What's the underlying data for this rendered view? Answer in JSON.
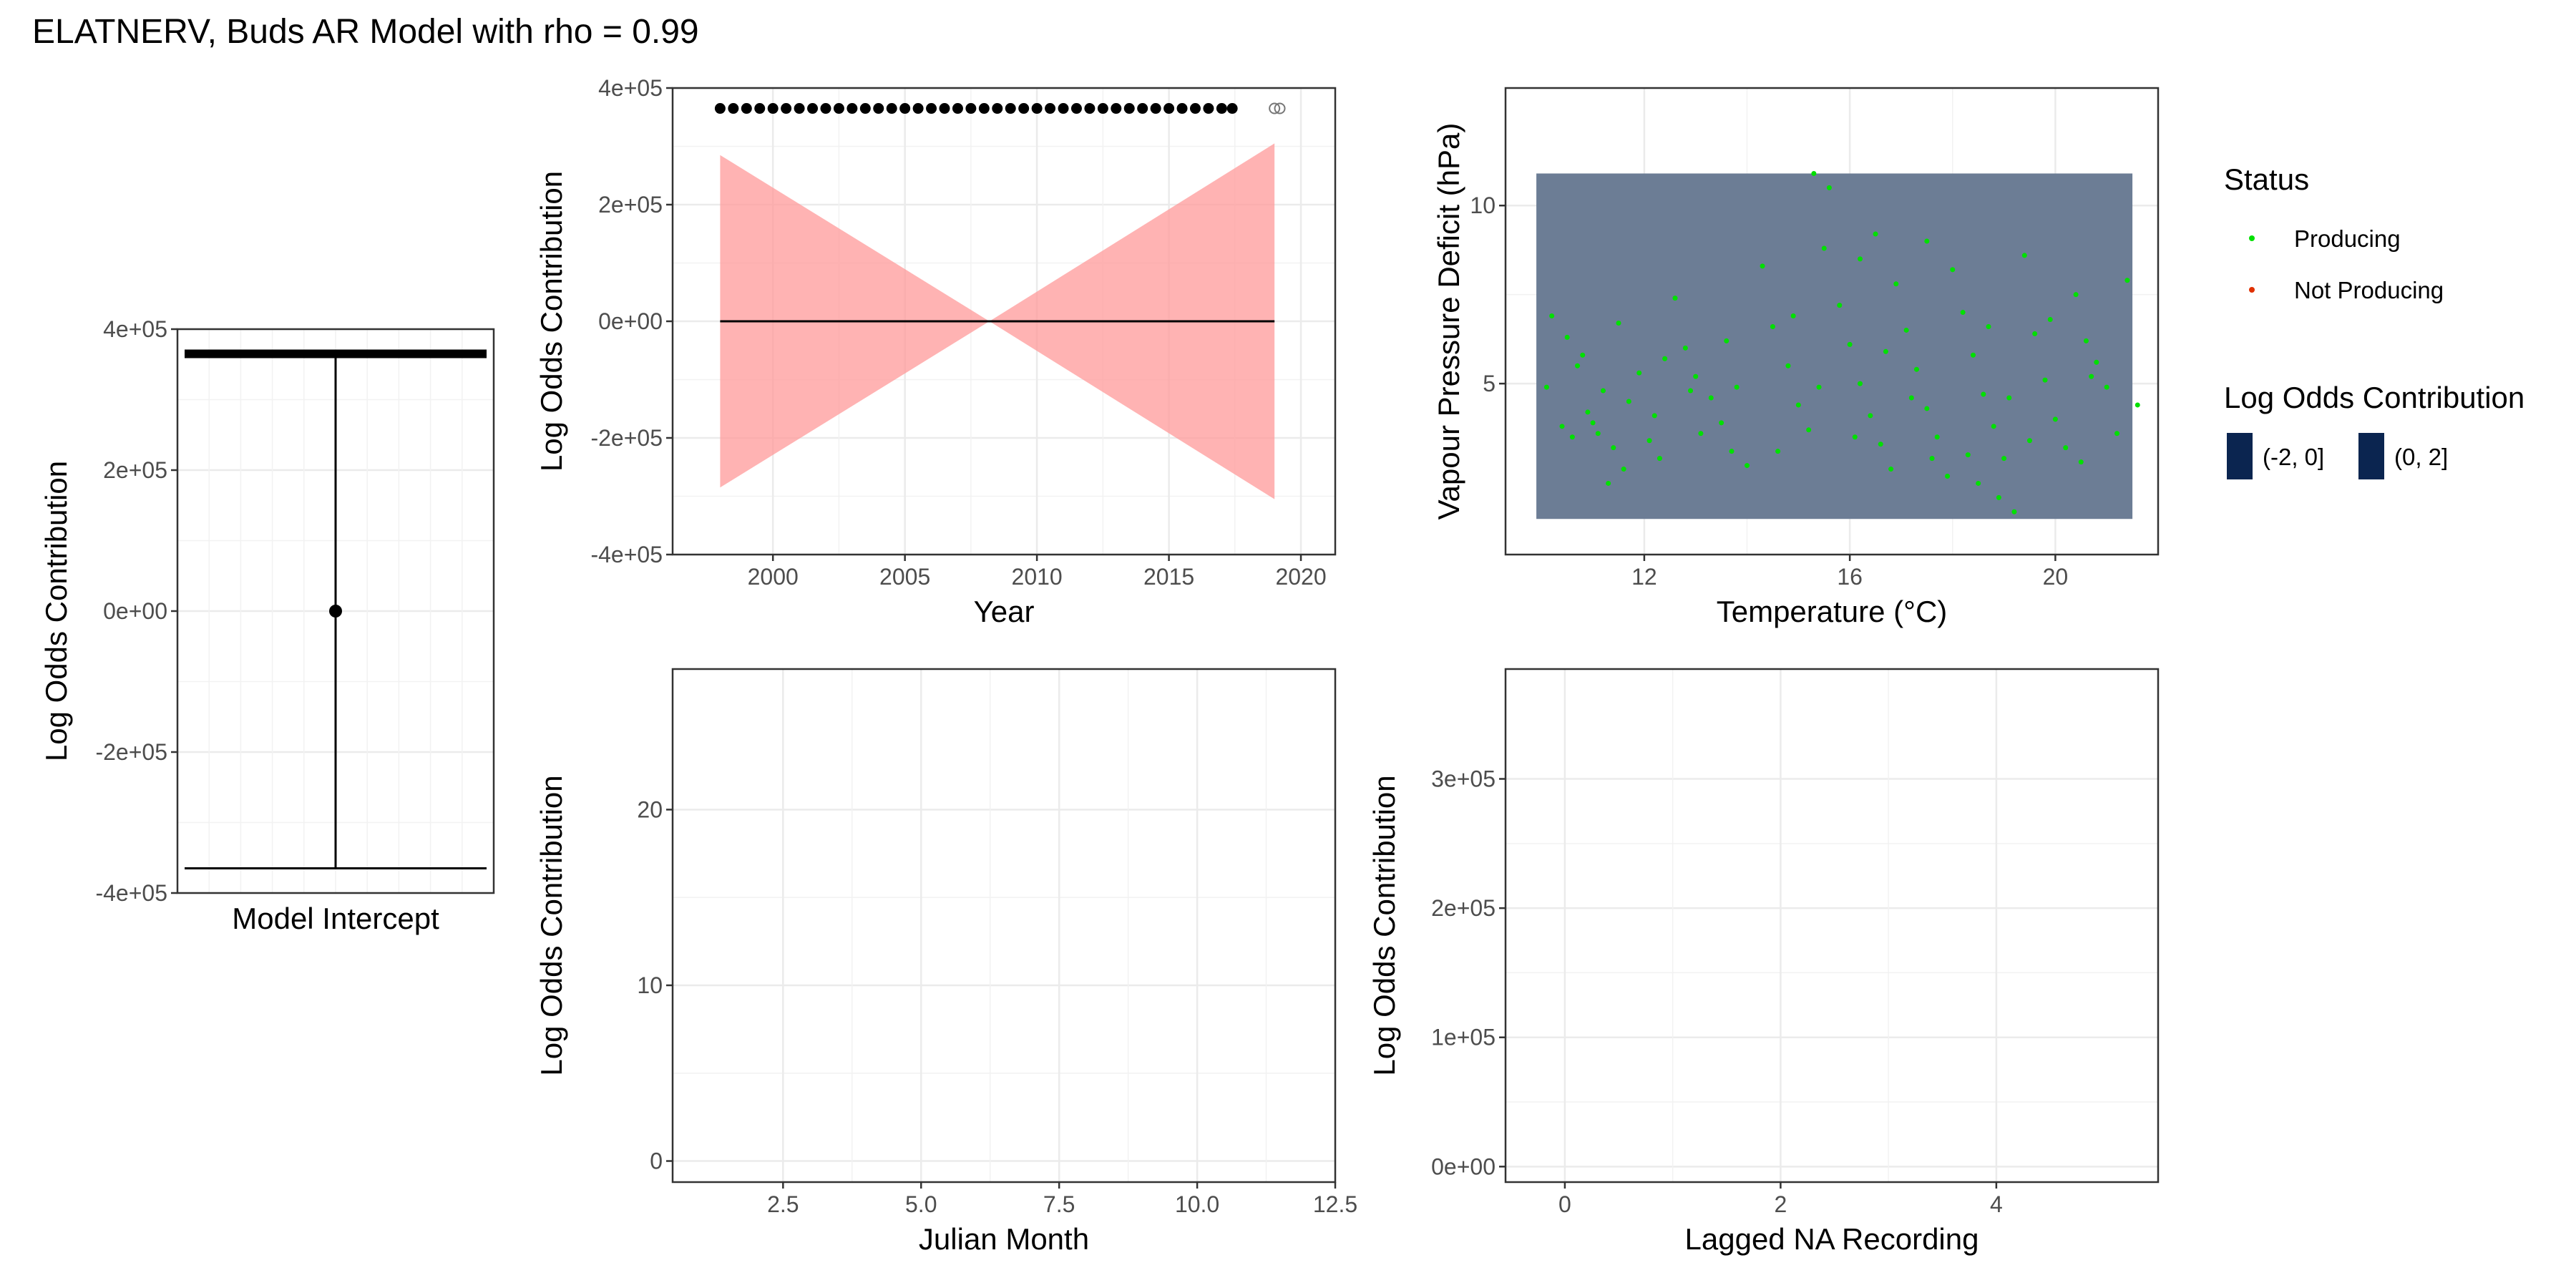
{
  "title": "ELATNERV, Buds AR Model with rho = 0.99",
  "legend": {
    "status_title": "Status",
    "status_items": [
      {
        "label": "Producing",
        "color": "#00e000"
      },
      {
        "label": "Not Producing",
        "color": "#e03000"
      }
    ],
    "lo_title": "Log Odds Contribution",
    "lo_items": [
      {
        "label": "(-2, 0]",
        "color": "#0b2550"
      },
      {
        "label": "(0, 2]",
        "color": "#0b2550"
      }
    ]
  },
  "chart_data": [
    {
      "id": "intercept",
      "type": "errorbar",
      "xlabel": "Model Intercept",
      "ylabel": "Log Odds Contribution",
      "ylim": [
        -400000,
        400000
      ],
      "yticks": [
        -400000,
        -200000,
        0,
        200000,
        400000
      ],
      "ytick_labels": [
        "-4e+05",
        "-2e+05",
        "0e+00",
        "2e+05",
        "4e+05"
      ],
      "estimate": 0,
      "lower": -365000,
      "upper": 365000
    },
    {
      "id": "year",
      "type": "line",
      "xlabel": "Year",
      "ylabel": "Log Odds Contribution",
      "xlim": [
        1996.2,
        2021.3
      ],
      "ylim": [
        -400000,
        400000
      ],
      "xticks": [
        2000,
        2005,
        2010,
        2015,
        2020
      ],
      "xtick_labels": [
        "2000",
        "2005",
        "2010",
        "2015",
        "2020"
      ],
      "yticks": [
        -400000,
        -200000,
        0,
        200000,
        400000
      ],
      "ytick_labels": [
        "-4e+05",
        "-2e+05",
        "0e+00",
        "2e+05",
        "4e+05"
      ],
      "band_color": "#ff9999",
      "series": [
        {
          "x": [
            1998,
            2008.2,
            2019
          ],
          "values": [
            0,
            0,
            0
          ],
          "lower": [
            -285000,
            0,
            -305000
          ],
          "upper": [
            285000,
            0,
            305000
          ]
        }
      ],
      "rug_y": 365000,
      "rug_x_black": [
        1998.0,
        1998.5,
        1999.0,
        1999.5,
        2000.0,
        2000.5,
        2001.0,
        2001.5,
        2002.0,
        2002.5,
        2003.0,
        2003.5,
        2004.0,
        2004.5,
        2005.0,
        2005.5,
        2006.0,
        2006.5,
        2007.0,
        2007.5,
        2008.0,
        2008.5,
        2009.0,
        2009.5,
        2010.0,
        2010.5,
        2011.0,
        2011.5,
        2012.0,
        2012.5,
        2013.0,
        2013.5,
        2014.0,
        2014.5,
        2015.0,
        2015.5,
        2016.0,
        2016.5,
        2017.0,
        2017.4
      ],
      "rug_x_grey": [
        2019.0,
        2019.2
      ]
    },
    {
      "id": "temp_vpd",
      "type": "scatter",
      "xlabel": "Temperature (°C)",
      "ylabel": "Vapour Pressure Deficit (hPa)",
      "xlim": [
        9.3,
        22.0
      ],
      "ylim": [
        0.2,
        13.3
      ],
      "xticks": [
        12,
        16,
        20
      ],
      "xtick_labels": [
        "12",
        "16",
        "20"
      ],
      "yticks": [
        5,
        10
      ],
      "ytick_labels": [
        "5",
        "10"
      ],
      "tile": {
        "x0": 9.9,
        "x1": 21.5,
        "y0": 1.2,
        "y1": 10.9,
        "color": "#6c7d95"
      },
      "point_color": "#00e000",
      "points": [
        [
          10.2,
          6.9
        ],
        [
          10.5,
          6.3
        ],
        [
          10.8,
          5.8
        ],
        [
          11.2,
          4.8
        ],
        [
          10.4,
          3.8
        ],
        [
          10.6,
          3.5
        ],
        [
          10.9,
          4.2
        ],
        [
          11.1,
          3.6
        ],
        [
          11.4,
          3.2
        ],
        [
          11.7,
          4.5
        ],
        [
          11.9,
          5.3
        ],
        [
          12.1,
          3.4
        ],
        [
          12.3,
          2.9
        ],
        [
          11.6,
          2.6
        ],
        [
          11.3,
          2.2
        ],
        [
          12.6,
          7.4
        ],
        [
          12.8,
          6.0
        ],
        [
          13.0,
          5.2
        ],
        [
          13.3,
          4.6
        ],
        [
          13.5,
          3.9
        ],
        [
          13.7,
          3.1
        ],
        [
          14.0,
          2.7
        ],
        [
          14.3,
          8.3
        ],
        [
          14.5,
          6.6
        ],
        [
          14.8,
          5.5
        ],
        [
          15.0,
          4.4
        ],
        [
          15.2,
          3.7
        ],
        [
          15.3,
          10.9
        ],
        [
          15.6,
          10.5
        ],
        [
          15.5,
          8.8
        ],
        [
          15.8,
          7.2
        ],
        [
          16.0,
          6.1
        ],
        [
          16.2,
          5.0
        ],
        [
          16.4,
          4.1
        ],
        [
          16.6,
          3.3
        ],
        [
          16.8,
          2.6
        ],
        [
          16.2,
          8.5
        ],
        [
          16.5,
          9.2
        ],
        [
          16.9,
          7.8
        ],
        [
          17.1,
          6.5
        ],
        [
          17.3,
          5.4
        ],
        [
          17.5,
          4.3
        ],
        [
          17.7,
          3.5
        ],
        [
          17.9,
          2.4
        ],
        [
          17.5,
          9.0
        ],
        [
          18.0,
          8.2
        ],
        [
          18.2,
          7.0
        ],
        [
          18.4,
          5.8
        ],
        [
          18.6,
          4.7
        ],
        [
          18.8,
          3.8
        ],
        [
          19.0,
          2.9
        ],
        [
          19.2,
          1.4
        ],
        [
          18.9,
          1.8
        ],
        [
          18.5,
          2.2
        ],
        [
          19.4,
          8.6
        ],
        [
          19.6,
          6.4
        ],
        [
          19.8,
          5.1
        ],
        [
          20.0,
          4.0
        ],
        [
          20.2,
          3.2
        ],
        [
          20.4,
          7.5
        ],
        [
          20.6,
          6.2
        ],
        [
          20.8,
          5.6
        ],
        [
          21.0,
          4.9
        ],
        [
          21.2,
          3.6
        ],
        [
          21.4,
          7.9
        ],
        [
          21.6,
          4.4
        ],
        [
          10.1,
          4.9
        ],
        [
          10.7,
          5.5
        ],
        [
          11.5,
          6.7
        ],
        [
          12.4,
          5.7
        ],
        [
          13.1,
          3.6
        ],
        [
          13.8,
          4.9
        ],
        [
          14.6,
          3.1
        ],
        [
          15.4,
          4.9
        ],
        [
          16.7,
          5.9
        ],
        [
          17.6,
          2.9
        ],
        [
          18.3,
          3.0
        ],
        [
          19.1,
          4.6
        ],
        [
          19.9,
          6.8
        ],
        [
          20.5,
          2.8
        ],
        [
          12.2,
          4.1
        ],
        [
          13.6,
          6.2
        ],
        [
          14.9,
          6.9
        ],
        [
          16.1,
          3.5
        ],
        [
          17.2,
          4.6
        ],
        [
          18.7,
          6.6
        ],
        [
          19.5,
          3.4
        ],
        [
          20.7,
          5.2
        ],
        [
          11.0,
          3.9
        ],
        [
          12.9,
          4.8
        ]
      ]
    },
    {
      "id": "month",
      "type": "line",
      "xlabel": "Julian Month",
      "ylabel": "Log Odds Contribution",
      "xlim": [
        0.5,
        12.5
      ],
      "ylim": [
        -1.2,
        28
      ],
      "xticks": [
        2.5,
        5.0,
        7.5,
        10.0,
        12.5
      ],
      "xtick_labels": [
        "2.5",
        "5.0",
        "7.5",
        "10.0",
        "12.5"
      ],
      "yticks": [
        0,
        10,
        20
      ],
      "ytick_labels": [
        "0",
        "10",
        "20"
      ],
      "series": []
    },
    {
      "id": "lagged",
      "type": "line",
      "xlabel": "Lagged NA Recording",
      "ylabel": "Log Odds Contribution",
      "xlim": [
        -0.55,
        5.5
      ],
      "ylim": [
        -12000,
        385000
      ],
      "xticks": [
        0,
        2,
        4
      ],
      "xtick_labels": [
        "0",
        "2",
        "4"
      ],
      "yticks": [
        0,
        100000,
        200000,
        300000
      ],
      "ytick_labels": [
        "0e+00",
        "1e+05",
        "2e+05",
        "3e+05"
      ],
      "series": []
    }
  ]
}
